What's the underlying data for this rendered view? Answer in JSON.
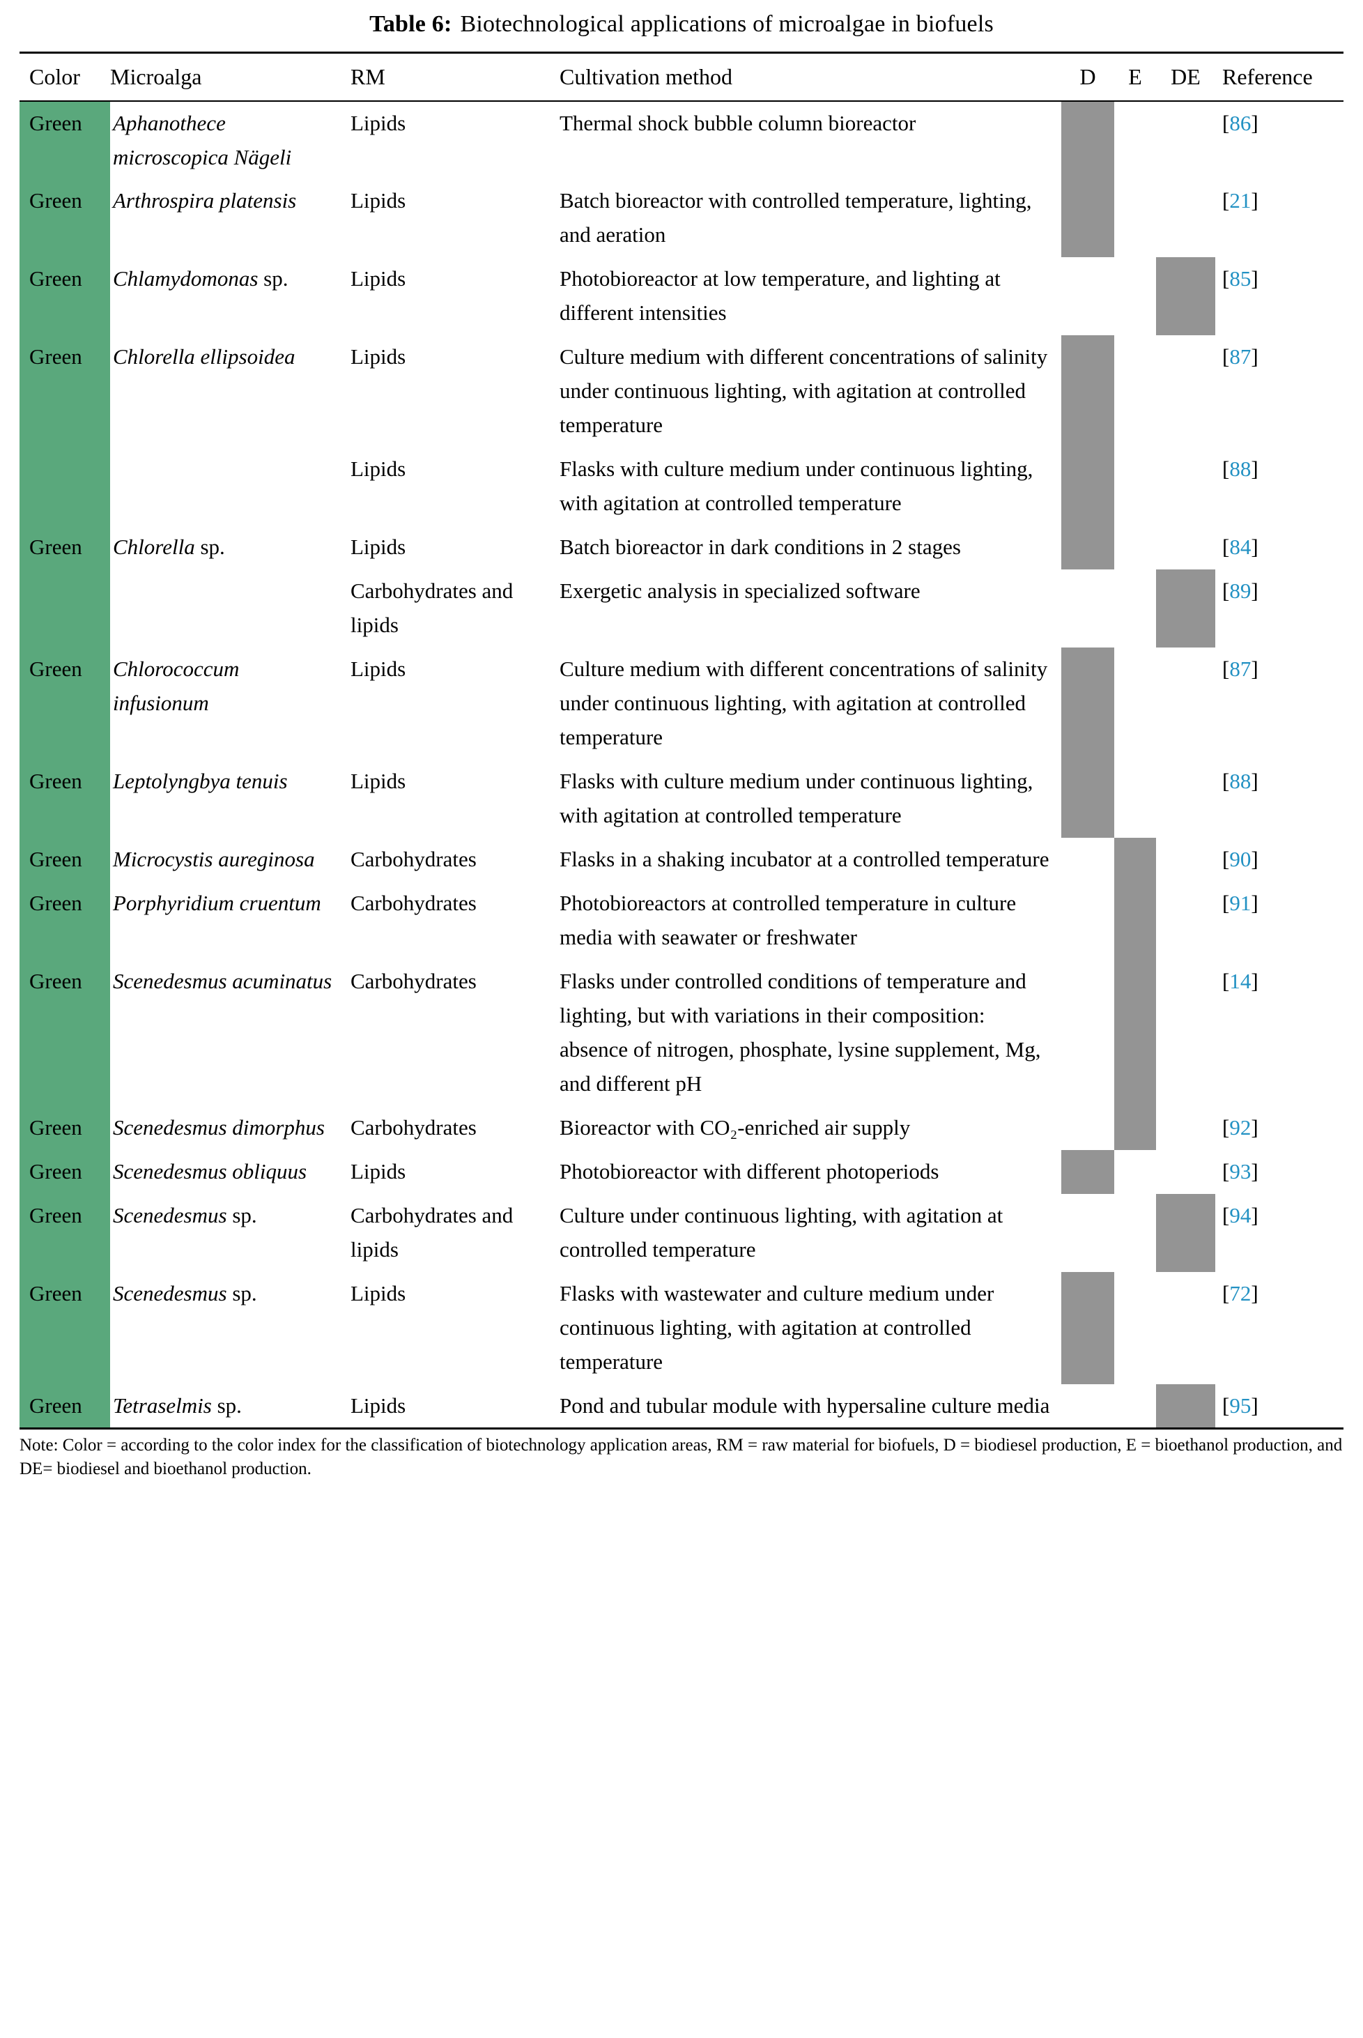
{
  "title": {
    "label": "Table 6:",
    "text": "Biotechnological applications of microalgae in biofuels"
  },
  "colors": {
    "green": "#5aa87c",
    "gray": "#949494",
    "ref_blue": "#2291c3"
  },
  "table": {
    "headers": [
      "Color",
      "Microalga",
      "RM",
      "Cultivation method",
      "D",
      "E",
      "DE",
      "Reference"
    ],
    "rows": [
      {
        "color": "Green",
        "alga_italic": "Aphanothece microscopica Nägeli",
        "alga_roman": "",
        "rm": "Lipids",
        "method": "Thermal shock bubble column bioreactor",
        "d": true,
        "e": false,
        "de": false,
        "ref": "86"
      },
      {
        "color": "Green",
        "alga_italic": "Arthrospira platensis",
        "alga_roman": "",
        "rm": "Lipids",
        "method": "Batch bioreactor with controlled temperature, lighting, and aeration",
        "d": true,
        "e": false,
        "de": false,
        "ref": "21"
      },
      {
        "color": "Green",
        "alga_italic": "Chlamydomonas",
        "alga_roman": " sp.",
        "rm": "Lipids",
        "method": "Photobioreactor at low temperature, and lighting at different intensities",
        "d": false,
        "e": false,
        "de": true,
        "ref": "85"
      },
      {
        "color": "Green",
        "alga_italic": "Chlorella ellipsoidea",
        "alga_roman": "",
        "rm": "Lipids",
        "method": "Culture medium with different concentrations of salinity under continuous lighting, with agitation at controlled temperature",
        "d": true,
        "e": false,
        "de": false,
        "ref": "87"
      },
      {
        "color": "",
        "alga_italic": "",
        "alga_roman": "",
        "rm": "Lipids",
        "method": "Flasks with culture medium under continuous lighting, with agitation at controlled temperature",
        "d": true,
        "e": false,
        "de": false,
        "ref": "88"
      },
      {
        "color": "Green",
        "alga_italic": "Chlorella",
        "alga_roman": " sp.",
        "rm": "Lipids",
        "method": "Batch bioreactor in dark conditions in 2 stages",
        "d": true,
        "e": false,
        "de": false,
        "ref": "84"
      },
      {
        "color": "",
        "alga_italic": "",
        "alga_roman": "",
        "rm": "Carbohydrates and lipids",
        "method": "Exergetic analysis in specialized software",
        "d": false,
        "e": false,
        "de": true,
        "ref": "89"
      },
      {
        "color": "Green",
        "alga_italic": "Chlorococcum infusionum",
        "alga_roman": "",
        "rm": "Lipids",
        "method": "Culture medium with different concentrations of salinity under continuous lighting, with agitation at controlled temperature",
        "d": true,
        "e": false,
        "de": false,
        "ref": "87"
      },
      {
        "color": "Green",
        "alga_italic": "Leptolyngbya tenuis",
        "alga_roman": "",
        "rm": "Lipids",
        "method": "Flasks with culture medium under continuous lighting, with agitation at controlled temperature",
        "d": true,
        "e": false,
        "de": false,
        "ref": "88"
      },
      {
        "color": "Green",
        "alga_italic": "Microcystis aureginosa",
        "alga_roman": "",
        "rm": "Carbohydrates",
        "method": "Flasks in a shaking incubator at a controlled temperature",
        "d": false,
        "e": true,
        "de": false,
        "ref": "90"
      },
      {
        "color": "Green",
        "alga_italic": "Porphyridium cruentum",
        "alga_roman": "",
        "rm": "Carbohydrates",
        "method": "Photobioreactors at controlled temperature in culture media with seawater or freshwater",
        "d": false,
        "e": true,
        "de": false,
        "ref": "91"
      },
      {
        "color": "Green",
        "alga_italic": "Scenedesmus acuminatus",
        "alga_roman": "",
        "rm": "Carbohydrates",
        "method": "Flasks under controlled conditions of temperature and lighting, but with variations in their composition: absence of nitrogen, phosphate, lysine supplement, Mg, and different pH",
        "d": false,
        "e": true,
        "de": false,
        "ref": "14"
      },
      {
        "color": "Green",
        "alga_italic": "Scenedesmus dimorphus",
        "alga_roman": "",
        "rm": "Carbohydrates",
        "method": "Bioreactor with CO₂-enriched air supply",
        "d": false,
        "e": true,
        "de": false,
        "ref": "92"
      },
      {
        "color": "Green",
        "alga_italic": "Scenedesmus obliquus",
        "alga_roman": "",
        "rm": "Lipids",
        "method": "Photobioreactor with different photoperiods",
        "d": true,
        "e": false,
        "de": false,
        "ref": "93"
      },
      {
        "color": "Green",
        "alga_italic": "Scenedesmus",
        "alga_roman": " sp.",
        "rm": "Carbohydrates and lipids",
        "method": "Culture under continuous lighting, with agitation at controlled temperature",
        "d": false,
        "e": false,
        "de": true,
        "ref": "94"
      },
      {
        "color": "Green",
        "alga_italic": "Scenedesmus",
        "alga_roman": " sp.",
        "rm": "Lipids",
        "method": "Flasks with wastewater and culture medium under continuous lighting, with agitation at controlled temperature",
        "d": true,
        "e": false,
        "de": false,
        "ref": "72"
      },
      {
        "color": "Green",
        "alga_italic": "Tetraselmis",
        "alga_roman": " sp.",
        "rm": "Lipids",
        "method": "Pond and tubular module with hypersaline culture media",
        "d": false,
        "e": false,
        "de": true,
        "ref": "95"
      }
    ]
  },
  "note": "Note: Color = according to the color index for the classification of biotechnology application areas, RM = raw material for biofuels, D = biodiesel production, E = bioethanol production, and DE= biodiesel and bioethanol production."
}
